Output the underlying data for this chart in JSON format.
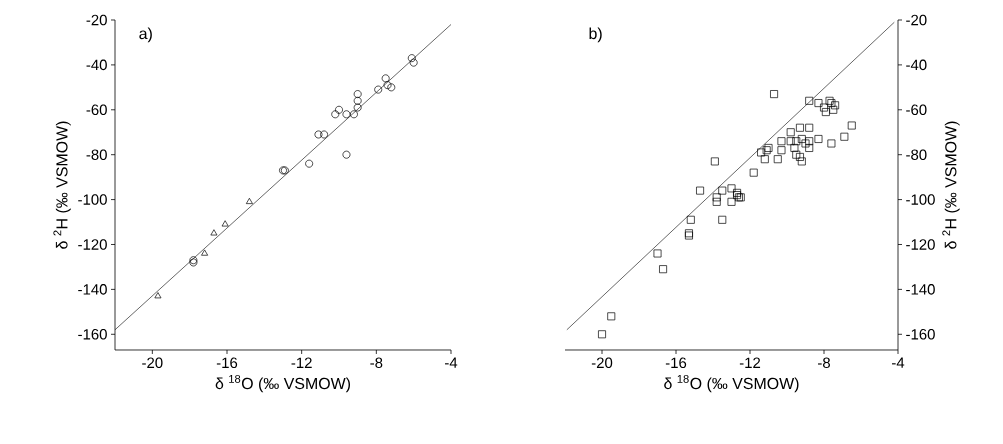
{
  "chart_data": [
    {
      "type": "scatter",
      "title": "a)",
      "xlabel": "δ $^{18}$O (‰ VSMOW)",
      "ylabel": "δ $^{2}$H (‰ VSMOW)",
      "xlim": [
        -22,
        -4
      ],
      "ylim": [
        -167,
        -20
      ],
      "xticks": [
        -20,
        -16,
        -12,
        -8,
        -4
      ],
      "yticks": [
        -160,
        -140,
        -120,
        -100,
        -80,
        -60,
        -40,
        -20
      ],
      "series": [
        {
          "color": "#000000",
          "marker": "circle",
          "x": [
            -6.1,
            -6.0,
            -7.5,
            -7.9,
            -7.4,
            -7.2,
            -9.0,
            -9.0,
            -9.0,
            -9.6,
            -9.2,
            -10.0,
            -10.2,
            -11.1,
            -10.8,
            -9.6,
            -11.6,
            -13.0,
            -12.9,
            -17.8,
            -17.8
          ],
          "values": [
            -37,
            -39,
            -46,
            -51,
            -49,
            -50,
            -53,
            -56,
            -59,
            -62,
            -62,
            -60,
            -62,
            -71,
            -71,
            -80,
            -84,
            -87,
            -87,
            -128,
            -127
          ]
        },
        {
          "color": "#000000",
          "marker": "triangle",
          "x": [
            -19.7,
            -17.2,
            -16.7,
            -16.1,
            -14.8
          ],
          "values": [
            -143,
            -124,
            -115,
            -111,
            -101
          ]
        },
        {
          "type": "line",
          "color": "#000000",
          "x": [
            -22,
            -4
          ],
          "values": [
            -158,
            -22
          ]
        }
      ]
    },
    {
      "type": "scatter",
      "title": "b)",
      "xlabel": "δ $^{18}$O (‰ VSMOW)",
      "y2label": "δ $^{2}$H (‰ VSMOW)",
      "xlim": [
        -22,
        -4
      ],
      "y2lim": [
        -167,
        -20
      ],
      "xticks": [
        -20,
        -16,
        -12,
        -8,
        -4
      ],
      "y2ticks": [
        -160,
        -140,
        -120,
        -100,
        -80,
        -60,
        -40,
        -20
      ],
      "series": [
        {
          "color": "#000000",
          "marker": "square",
          "axis": "y2",
          "x": [
            -20.0,
            -19.5,
            -17.0,
            -16.7,
            -15.2,
            -15.3,
            -15.3,
            -13.5,
            -13.9,
            -14.7,
            -13.8,
            -13.8,
            -13.5,
            -13.0,
            -13.0,
            -12.7,
            -12.7,
            -12.6,
            -12.5,
            -11.8,
            -11.4,
            -11.1,
            -11.0,
            -11.2,
            -10.7,
            -10.5,
            -10.3,
            -10.3,
            -9.8,
            -9.8,
            -9.6,
            -9.3,
            -8.8,
            -9.5,
            -9.2,
            -9.0,
            -8.8,
            -9.5,
            -9.3,
            -9.2,
            -8.8,
            -8.3,
            -7.6,
            -6.9,
            -6.5,
            -8.8,
            -8.3,
            -7.7,
            -8.0,
            -7.9,
            -7.5,
            -7.4,
            -7.6
          ],
          "values": [
            -160,
            -152,
            -124,
            -131,
            -109,
            -116,
            -115,
            -109,
            -83,
            -96,
            -99,
            -101,
            -96,
            -95,
            -101,
            -98,
            -97,
            -99,
            -99,
            -88,
            -79,
            -78,
            -77,
            -82,
            -53,
            -82,
            -74,
            -78,
            -70,
            -74,
            -77,
            -68,
            -68,
            -74,
            -73,
            -75,
            -77,
            -80,
            -81,
            -83,
            -74,
            -73,
            -75,
            -72,
            -67,
            -56,
            -57,
            -56,
            -59,
            -61,
            -60,
            -58,
            -57
          ]
        },
        {
          "type": "line",
          "color": "#000000",
          "axis": "y2",
          "x": [
            -21.9,
            -4.2
          ],
          "values": [
            -158,
            -21
          ]
        }
      ]
    }
  ]
}
